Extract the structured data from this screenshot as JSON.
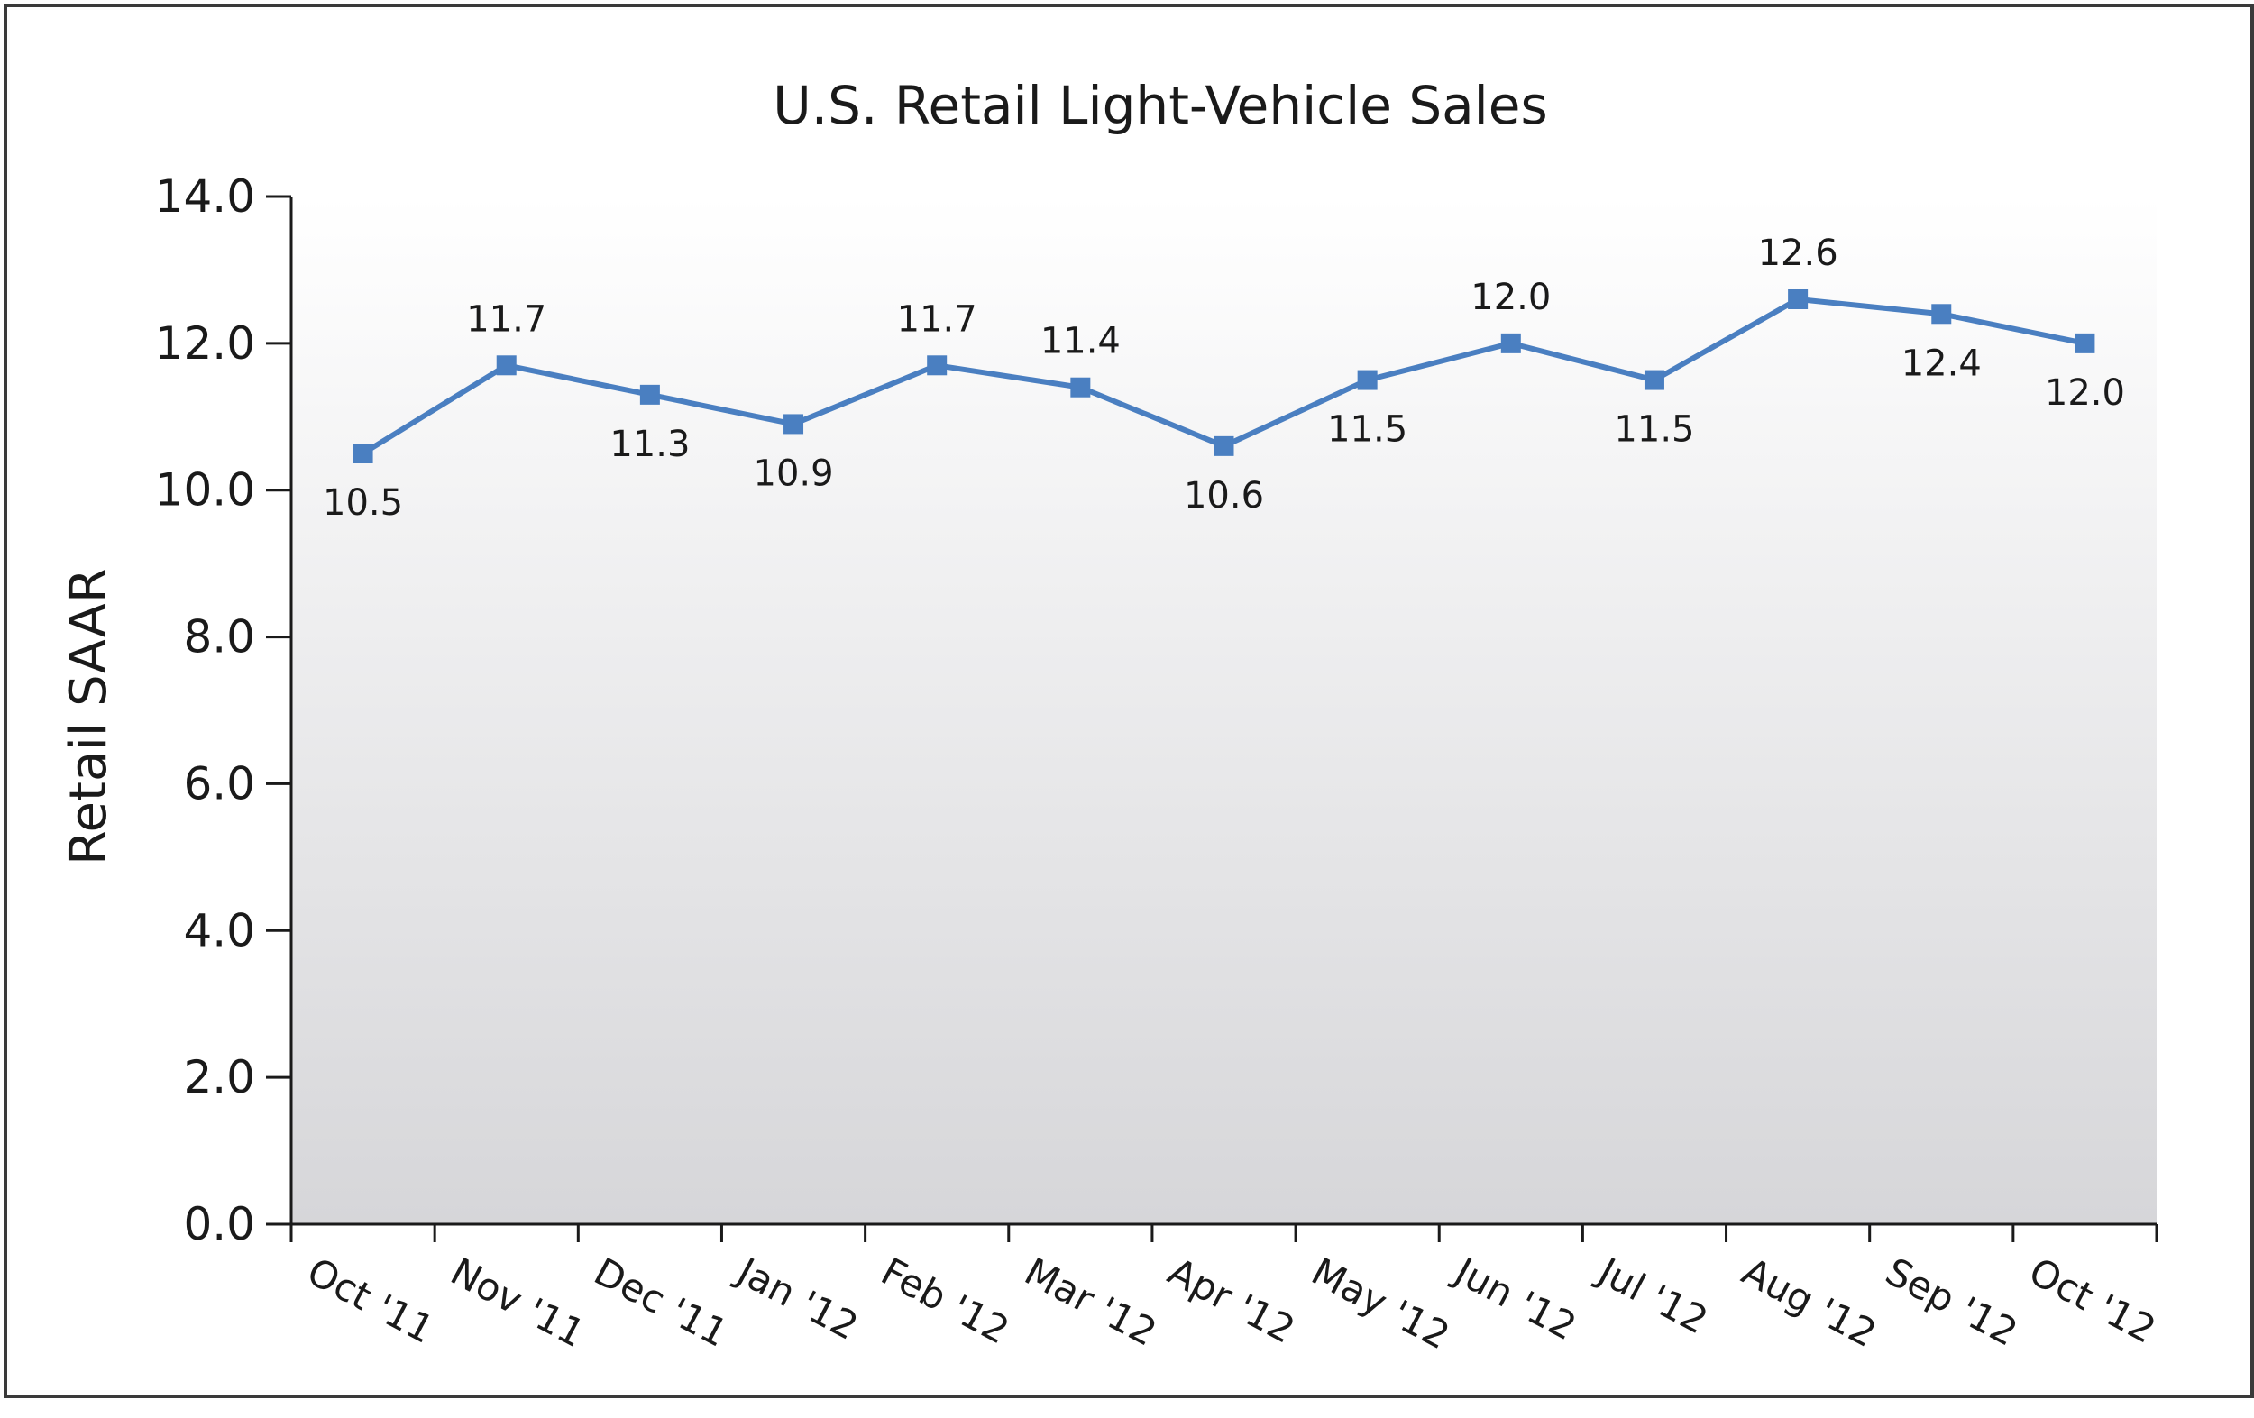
{
  "chart_data": {
    "type": "line",
    "title": "U.S. Retail Light-Vehicle Sales",
    "xlabel": "",
    "ylabel": "Retail SAAR",
    "categories": [
      "Oct '11",
      "Nov '11",
      "Dec '11",
      "Jan '12",
      "Feb '12",
      "Mar '12",
      "Apr '12",
      "May '12",
      "Jun '12",
      "Jul '12",
      "Aug '12",
      "Sep '12",
      "Oct '12"
    ],
    "series": [
      {
        "values": [
          10.5,
          11.7,
          11.3,
          10.9,
          11.7,
          11.4,
          10.6,
          11.5,
          12.0,
          11.5,
          12.6,
          12.4,
          12.0
        ],
        "data_labels": [
          "10.5",
          "11.7",
          "11.3",
          "10.9",
          "11.7",
          "11.4",
          "10.6",
          "11.5",
          "12.0",
          "11.5",
          "12.6",
          "12.4",
          "12.0"
        ],
        "label_positions": [
          "below",
          "above",
          "below",
          "below",
          "above",
          "above",
          "below",
          "below",
          "above",
          "below",
          "above",
          "below",
          "below"
        ],
        "color": "#4a7fc1",
        "marker": "square"
      }
    ],
    "y_ticks": [
      "0.0",
      "2.0",
      "4.0",
      "6.0",
      "8.0",
      "10.0",
      "12.0",
      "14.0"
    ],
    "ylim": [
      0,
      14
    ],
    "grid": false,
    "legend": "none",
    "background": "vertical-gradient",
    "colors": {
      "gradient_top": "#ffffff",
      "gradient_bottom": "#d6d6d9",
      "axis": "#1a1a1a",
      "frame": "#3a3a3a"
    }
  }
}
